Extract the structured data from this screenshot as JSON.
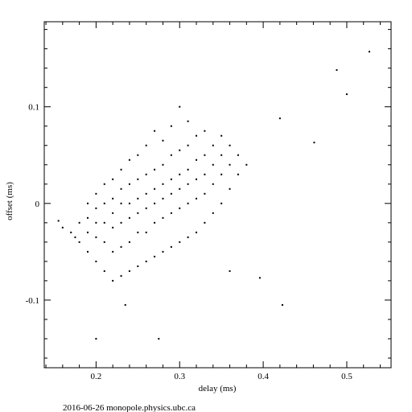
{
  "chart_data": {
    "type": "scatter",
    "xlabel": "delay (ms)",
    "ylabel": "offset (ms)",
    "footer": "2016-06-26 monopole.physics.ubc.ca",
    "color": "#000000",
    "xlim": [
      0.138,
      0.553
    ],
    "ylim": [
      -0.17,
      0.188
    ],
    "xticks": [
      0.2,
      0.3,
      0.4,
      0.5
    ],
    "yticks": [
      -0.1,
      0,
      0.1
    ],
    "xminorticks": [
      0.14,
      0.16,
      0.18,
      0.22,
      0.24,
      0.26,
      0.28,
      0.32,
      0.34,
      0.36,
      0.38,
      0.42,
      0.44,
      0.46,
      0.48,
      0.52,
      0.54
    ],
    "yminorticks": [
      -0.16,
      -0.14,
      -0.12,
      -0.08,
      -0.06,
      -0.04,
      -0.02,
      0.02,
      0.04,
      0.06,
      0.08,
      0.12,
      0.14,
      0.16,
      0.18
    ],
    "x": [
      0.17,
      0.18,
      0.18,
      0.19,
      0.19,
      0.19,
      0.19,
      0.2,
      0.2,
      0.2,
      0.2,
      0.2,
      0.21,
      0.21,
      0.21,
      0.21,
      0.21,
      0.22,
      0.22,
      0.22,
      0.22,
      0.22,
      0.22,
      0.23,
      0.23,
      0.23,
      0.23,
      0.23,
      0.23,
      0.24,
      0.24,
      0.24,
      0.24,
      0.24,
      0.24,
      0.25,
      0.25,
      0.25,
      0.25,
      0.25,
      0.25,
      0.26,
      0.26,
      0.26,
      0.26,
      0.26,
      0.26,
      0.27,
      0.27,
      0.27,
      0.27,
      0.27,
      0.27,
      0.28,
      0.28,
      0.28,
      0.28,
      0.28,
      0.28,
      0.29,
      0.29,
      0.29,
      0.29,
      0.29,
      0.29,
      0.3,
      0.3,
      0.3,
      0.3,
      0.3,
      0.3,
      0.31,
      0.31,
      0.31,
      0.31,
      0.31,
      0.31,
      0.32,
      0.32,
      0.32,
      0.32,
      0.32,
      0.33,
      0.33,
      0.33,
      0.33,
      0.33,
      0.34,
      0.34,
      0.34,
      0.34,
      0.35,
      0.35,
      0.35,
      0.35,
      0.36,
      0.36,
      0.36,
      0.37,
      0.37,
      0.38,
      0.527,
      0.5,
      0.488,
      0.423,
      0.396,
      0.2,
      0.235,
      0.275,
      0.461,
      0.42,
      0.36,
      0.155,
      0.175,
      0.16
    ],
    "values": [
      -0.03,
      -0.04,
      -0.02,
      -0.05,
      -0.03,
      -0.015,
      0.0,
      -0.06,
      -0.035,
      -0.02,
      -0.005,
      0.01,
      -0.07,
      -0.04,
      -0.02,
      0,
      0.02,
      -0.08,
      -0.05,
      -0.025,
      -0.01,
      0.005,
      0.025,
      -0.075,
      -0.045,
      -0.02,
      0,
      0.015,
      0.035,
      -0.07,
      -0.04,
      -0.015,
      0.0,
      0.02,
      0.045,
      -0.065,
      -0.03,
      -0.01,
      0.005,
      0.025,
      0.05,
      -0.06,
      -0.03,
      -0.005,
      0.01,
      0.03,
      0.06,
      -0.055,
      -0.02,
      0,
      0.015,
      0.035,
      0.075,
      -0.05,
      -0.015,
      0.005,
      0.02,
      0.04,
      0.065,
      -0.045,
      -0.01,
      0.01,
      0.025,
      0.05,
      0.08,
      -0.04,
      -0.005,
      0.015,
      0.03,
      0.055,
      0.1,
      -0.035,
      0.0,
      0.02,
      0.035,
      0.06,
      0.085,
      -0.03,
      0.005,
      0.025,
      0.045,
      0.07,
      -0.02,
      0.01,
      0.03,
      0.05,
      0.075,
      -0.01,
      0.02,
      0.04,
      0.06,
      0.0,
      0.03,
      0.05,
      0.07,
      0.015,
      0.04,
      0.06,
      0.03,
      0.05,
      0.04,
      0.157,
      0.113,
      0.138,
      -0.105,
      -0.077,
      -0.14,
      -0.105,
      -0.14,
      0.063,
      0.088,
      -0.07,
      -0.018,
      -0.035,
      -0.025
    ]
  }
}
